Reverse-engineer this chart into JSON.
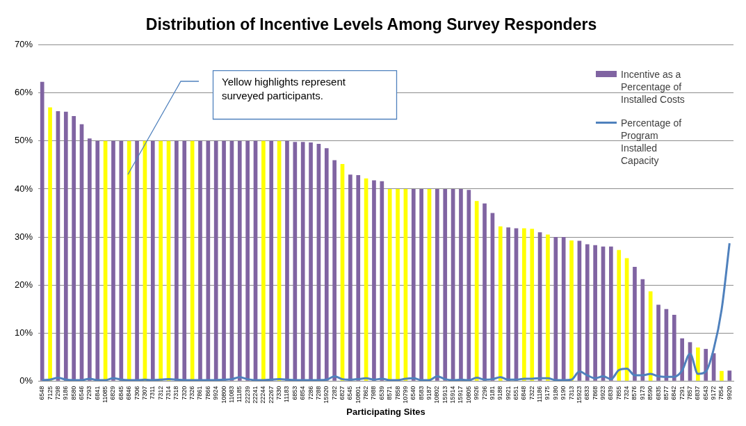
{
  "chart_data": {
    "type": "bar",
    "title": "Distribution of Incentive Levels Among Survey Responders",
    "xlabel": "Participating Sites",
    "categories": [
      "6548",
      "7125",
      "7298",
      "9186",
      "8580",
      "6546",
      "7293",
      "6841",
      "11085",
      "6829",
      "6845",
      "6846",
      "7306",
      "7307",
      "7311",
      "7312",
      "7314",
      "7318",
      "7320",
      "7326",
      "7861",
      "7866",
      "9924",
      "10800",
      "11083",
      "11185",
      "22239",
      "22241",
      "22244",
      "22267",
      "7330",
      "11183",
      "6853",
      "6854",
      "7286",
      "7288",
      "15920",
      "7282",
      "6827",
      "6545",
      "10801",
      "7862",
      "7988",
      "6539",
      "8571",
      "7858",
      "10799",
      "6540",
      "8583",
      "9187",
      "10802",
      "15913",
      "15914",
      "15917",
      "10805",
      "9926",
      "7296",
      "9181",
      "9188",
      "9921",
      "6551",
      "6848",
      "7322",
      "11186",
      "9175",
      "9180",
      "9190",
      "7313",
      "15923",
      "6833",
      "7868",
      "9923",
      "6839",
      "7855",
      "7324",
      "8576",
      "9173",
      "8590",
      "6835",
      "8577",
      "6842",
      "7291",
      "7857",
      "6837",
      "6543",
      "9172",
      "7854",
      "9920"
    ],
    "series": [
      {
        "name": "Incentive as a Percentage of Installed Costs",
        "color": "#8064a2",
        "values": [
          62.3,
          57,
          56.2,
          56.1,
          55.2,
          53.5,
          50.5,
          50,
          50,
          50,
          50,
          50,
          50,
          50,
          50,
          50,
          50,
          50,
          50,
          50,
          50,
          50,
          50,
          50,
          50,
          50,
          50,
          50,
          50,
          50,
          50,
          50,
          49.8,
          49.8,
          49.7,
          49.4,
          48.5,
          46,
          45.2,
          43,
          42.9,
          42.2,
          41.8,
          41.6,
          40,
          40,
          40,
          40,
          40,
          40,
          40,
          40,
          40,
          40,
          39.8,
          37.5,
          37,
          35,
          32.2,
          32,
          31.8,
          31.8,
          31.7,
          31,
          30.5,
          30,
          30,
          29.3,
          29.2,
          28.5,
          28.3,
          28,
          28,
          27.3,
          25.6,
          23.8,
          21.2,
          18.7,
          15.9,
          15,
          13.8,
          8.9,
          8.1,
          7,
          6.7,
          5.8,
          2.1,
          2.2
        ],
        "colors": [
          "#8064a2",
          "#ffff00",
          "#8064a2",
          "#8064a2",
          "#8064a2",
          "#8064a2",
          "#8064a2",
          "#8064a2",
          "#ffff00",
          "#8064a2",
          "#8064a2",
          "#ffff00",
          "#8064a2",
          "#ffff00",
          "#8064a2",
          "#ffff00",
          "#ffff00",
          "#8064a2",
          "#8064a2",
          "#ffff00",
          "#8064a2",
          "#8064a2",
          "#8064a2",
          "#8064a2",
          "#8064a2",
          "#8064a2",
          "#8064a2",
          "#8064a2",
          "#ffff00",
          "#8064a2",
          "#ffff00",
          "#8064a2",
          "#8064a2",
          "#8064a2",
          "#8064a2",
          "#8064a2",
          "#8064a2",
          "#8064a2",
          "#ffff00",
          "#8064a2",
          "#8064a2",
          "#ffff00",
          "#8064a2",
          "#8064a2",
          "#ffff00",
          "#ffff00",
          "#ffff00",
          "#8064a2",
          "#8064a2",
          "#ffff00",
          "#8064a2",
          "#8064a2",
          "#8064a2",
          "#8064a2",
          "#8064a2",
          "#ffff00",
          "#8064a2",
          "#8064a2",
          "#ffff00",
          "#8064a2",
          "#8064a2",
          "#ffff00",
          "#ffff00",
          "#8064a2",
          "#ffff00",
          "#8064a2",
          "#8064a2",
          "#ffff00",
          "#8064a2",
          "#8064a2",
          "#8064a2",
          "#8064a2",
          "#8064a2",
          "#ffff00",
          "#ffff00",
          "#8064a2",
          "#8064a2",
          "#ffff00",
          "#8064a2",
          "#8064a2",
          "#8064a2",
          "#8064a2",
          "#8064a2",
          "#ffff00",
          "#8064a2",
          "#8064a2",
          "#ffff00",
          "#8064a2"
        ]
      },
      {
        "name": "Percentage of Program Installed Capacity",
        "type": "line",
        "color": "#4f81bd",
        "values": [
          0.2,
          0.3,
          0.7,
          0.3,
          0.2,
          0.2,
          0.5,
          0.2,
          0.2,
          0.6,
          0.3,
          0.2,
          0.2,
          0.3,
          0.2,
          0.3,
          0.4,
          0.3,
          0.2,
          0.2,
          0.2,
          0.2,
          0.2,
          0.3,
          0.4,
          0.8,
          0.4,
          0.2,
          0.2,
          0.3,
          0.4,
          0.3,
          0.2,
          0.2,
          0.2,
          0.2,
          0.3,
          1.0,
          0.4,
          0.3,
          0.4,
          0.6,
          0.3,
          0.5,
          0.2,
          0.2,
          0.5,
          0.6,
          0.2,
          0.2,
          1.0,
          0.4,
          0.2,
          0.3,
          0.2,
          0.7,
          0.3,
          0.4,
          0.8,
          0.3,
          0.3,
          0.5,
          0.5,
          0.6,
          0.6,
          0.2,
          0.2,
          0.3,
          2.0,
          1.2,
          0.6,
          1.0,
          0.4,
          2.3,
          2.6,
          1.2,
          1.2,
          1.5,
          1.0,
          0.9,
          0.9,
          2.2,
          5.7,
          1.5,
          2.0,
          6.7,
          14.9,
          28.7
        ]
      }
    ],
    "ylim": [
      0,
      70
    ],
    "yticks": [
      {
        "value": 0,
        "label": "0%"
      },
      {
        "value": 10,
        "label": "10%"
      },
      {
        "value": 20,
        "label": "20%"
      },
      {
        "value": 30,
        "label": "30%"
      },
      {
        "value": 40,
        "label": "40%"
      },
      {
        "value": 50,
        "label": "50%"
      },
      {
        "value": 60,
        "label": "60%"
      },
      {
        "value": 70,
        "label": "70%"
      }
    ],
    "grid": "y",
    "legend": "right",
    "marker": "none",
    "annotations": [
      "Yellow highlights represent surveyed participants."
    ]
  }
}
